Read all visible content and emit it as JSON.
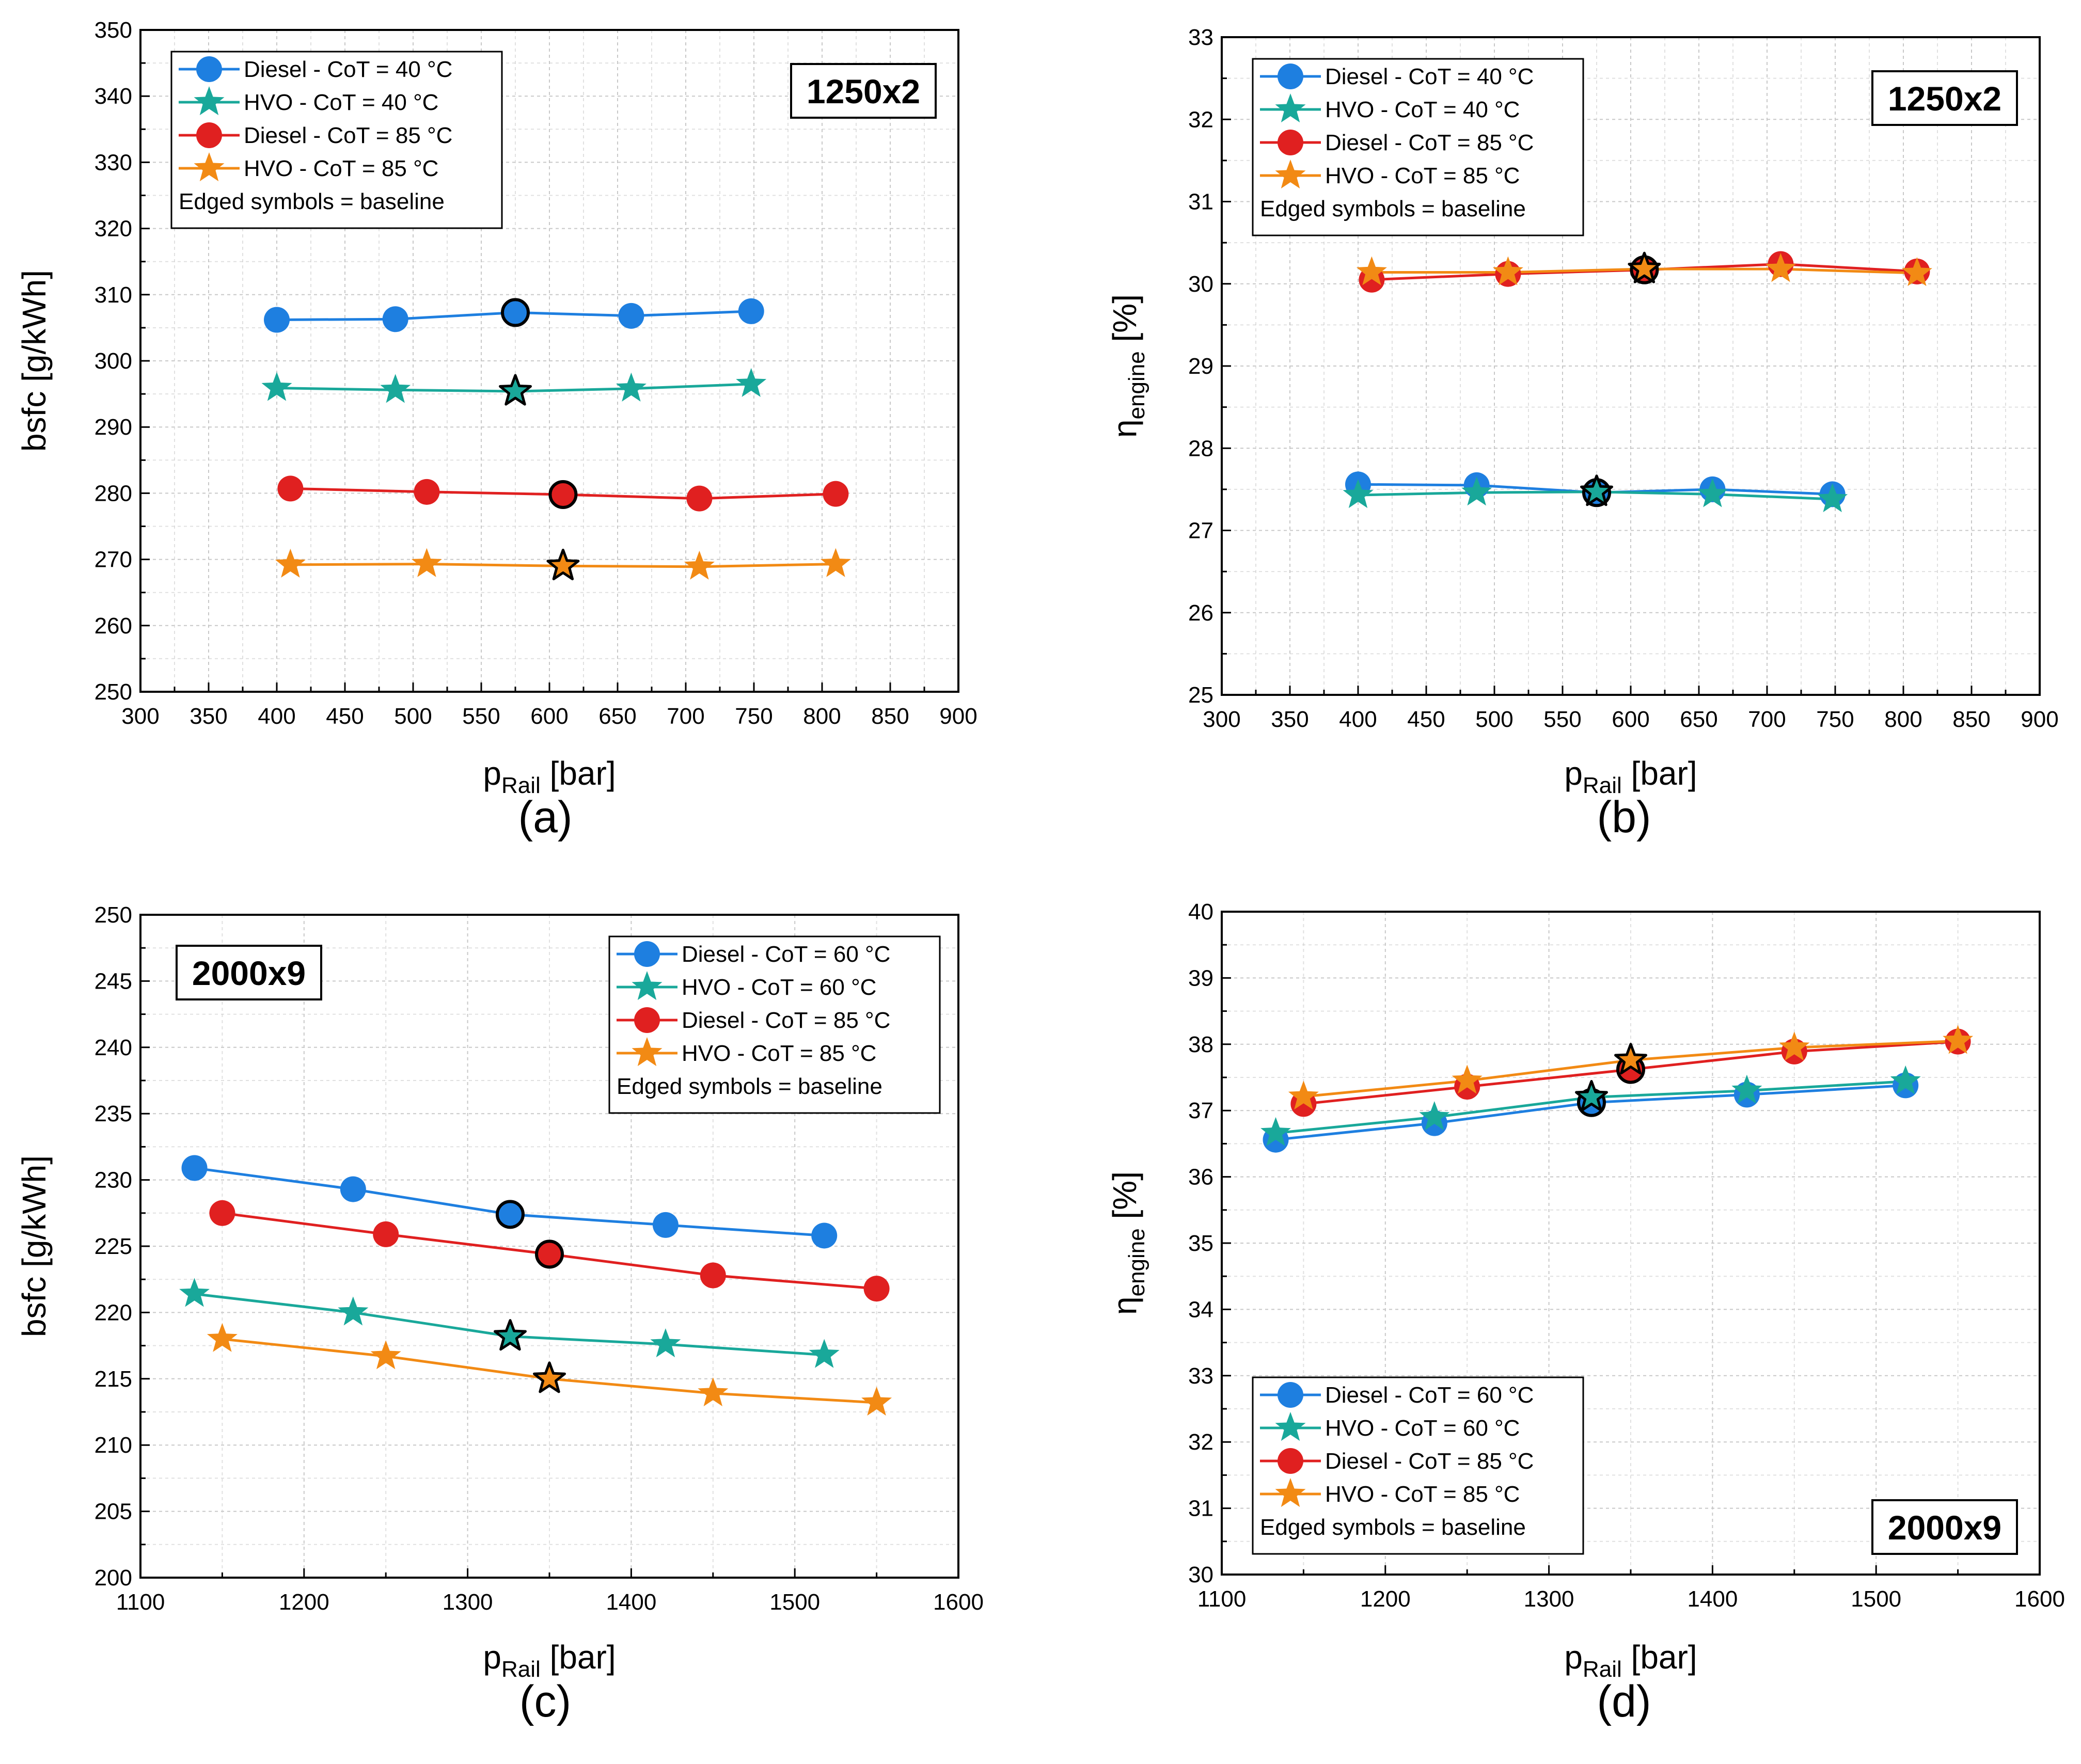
{
  "figure": {
    "colors": {
      "diesel_40": "#1e7fe0",
      "hvo_40": "#19a89a",
      "diesel_85": "#e02020",
      "hvo_85": "#f28a14",
      "baseline_edge": "#000000"
    }
  },
  "chart_data": [
    {
      "id": "a",
      "type": "line",
      "panel_label": "(a)",
      "box_label": "1250x2",
      "box_position": "top-right",
      "legend_position": "top-left",
      "xlabel_main": "p",
      "xlabel_sub": "Rail",
      "xlabel_unit": " [bar]",
      "ylabel_main": "bsfc [g/kWh]",
      "ylabel_sub": "",
      "ylabel_unit": "",
      "xlim": [
        300,
        900
      ],
      "xticks": [
        300,
        350,
        400,
        450,
        500,
        550,
        600,
        650,
        700,
        750,
        800,
        850,
        900
      ],
      "ylim": [
        250,
        350
      ],
      "yticks": [
        250,
        260,
        270,
        280,
        290,
        300,
        310,
        320,
        330,
        340,
        350
      ],
      "legend_note": "Edged symbols = baseline",
      "series": [
        {
          "name": "Diesel - CoT = 40 °C",
          "marker": "circle",
          "color": "#1e7fe0",
          "x": [
            400,
            487,
            575,
            660,
            748
          ],
          "y": [
            306.2,
            306.3,
            307.3,
            306.8,
            307.5
          ],
          "baseline_index": 2
        },
        {
          "name": "HVO - CoT = 40 °C",
          "marker": "star",
          "color": "#19a89a",
          "x": [
            400,
            487,
            575,
            660,
            748
          ],
          "y": [
            295.9,
            295.6,
            295.4,
            295.8,
            296.5
          ],
          "baseline_index": 2
        },
        {
          "name": "Diesel - CoT = 85 °C",
          "marker": "circle",
          "color": "#e02020",
          "x": [
            410,
            510,
            610,
            710,
            810
          ],
          "y": [
            280.7,
            280.2,
            279.8,
            279.2,
            279.9
          ],
          "baseline_index": 2
        },
        {
          "name": "HVO - CoT = 85 °C",
          "marker": "star",
          "color": "#f28a14",
          "x": [
            410,
            510,
            610,
            710,
            810
          ],
          "y": [
            269.2,
            269.3,
            269.0,
            268.9,
            269.3
          ],
          "baseline_index": 2
        }
      ]
    },
    {
      "id": "b",
      "type": "line",
      "panel_label": "(b)",
      "box_label": "1250x2",
      "box_position": "top-right",
      "legend_position": "top-left",
      "xlabel_main": "p",
      "xlabel_sub": "Rail",
      "xlabel_unit": " [bar]",
      "ylabel_main": "η",
      "ylabel_sub": "engine",
      "ylabel_unit": " [%]",
      "xlim": [
        300,
        900
      ],
      "xticks": [
        300,
        350,
        400,
        450,
        500,
        550,
        600,
        650,
        700,
        750,
        800,
        850,
        900
      ],
      "ylim": [
        25,
        33
      ],
      "yticks": [
        25,
        26,
        27,
        28,
        29,
        30,
        31,
        32,
        33
      ],
      "legend_note": "Edged symbols = baseline",
      "series": [
        {
          "name": "Diesel - CoT = 40 °C",
          "marker": "circle",
          "color": "#1e7fe0",
          "x": [
            400,
            487,
            575,
            660,
            748
          ],
          "y": [
            27.56,
            27.55,
            27.46,
            27.5,
            27.44
          ],
          "baseline_index": 2
        },
        {
          "name": "HVO - CoT = 40 °C",
          "marker": "star",
          "color": "#19a89a",
          "x": [
            400,
            487,
            575,
            660,
            748
          ],
          "y": [
            27.43,
            27.46,
            27.47,
            27.44,
            27.38
          ],
          "baseline_index": 2
        },
        {
          "name": "Diesel - CoT = 85 °C",
          "marker": "circle",
          "color": "#e02020",
          "x": [
            410,
            510,
            610,
            710,
            810
          ],
          "y": [
            30.05,
            30.12,
            30.17,
            30.24,
            30.15
          ],
          "baseline_index": 2
        },
        {
          "name": "HVO - CoT = 85 °C",
          "marker": "star",
          "color": "#f28a14",
          "x": [
            410,
            510,
            610,
            710,
            810
          ],
          "y": [
            30.14,
            30.14,
            30.18,
            30.18,
            30.13
          ],
          "baseline_index": 2
        }
      ]
    },
    {
      "id": "c",
      "type": "line",
      "panel_label": "(c)",
      "box_label": "2000x9",
      "box_position": "top-left",
      "legend_position": "top-right",
      "xlabel_main": "p",
      "xlabel_sub": "Rail",
      "xlabel_unit": " [bar]",
      "ylabel_main": "bsfc [g/kWh]",
      "ylabel_sub": "",
      "ylabel_unit": "",
      "xlim": [
        1100,
        1600
      ],
      "xticks": [
        1100,
        1200,
        1300,
        1400,
        1500,
        1600
      ],
      "ylim": [
        200,
        250
      ],
      "yticks": [
        200,
        205,
        210,
        215,
        220,
        225,
        230,
        235,
        240,
        245,
        250
      ],
      "legend_note": "Edged symbols = baseline",
      "series": [
        {
          "name": "Diesel - CoT = 60 °C",
          "marker": "circle",
          "color": "#1e7fe0",
          "x": [
            1133,
            1230,
            1326,
            1421,
            1518
          ],
          "y": [
            230.9,
            229.3,
            227.4,
            226.6,
            225.8
          ],
          "baseline_index": 2
        },
        {
          "name": "HVO - CoT = 60 °C",
          "marker": "star",
          "color": "#19a89a",
          "x": [
            1133,
            1230,
            1326,
            1421,
            1518
          ],
          "y": [
            221.4,
            220.0,
            218.2,
            217.6,
            216.8
          ],
          "baseline_index": 2
        },
        {
          "name": "Diesel - CoT = 85 °C",
          "marker": "circle",
          "color": "#e02020",
          "x": [
            1150,
            1250,
            1350,
            1450,
            1550
          ],
          "y": [
            227.5,
            225.9,
            224.4,
            222.8,
            221.8
          ],
          "baseline_index": 2
        },
        {
          "name": "HVO - CoT = 85 °C",
          "marker": "star",
          "color": "#f28a14",
          "x": [
            1150,
            1250,
            1350,
            1450,
            1550
          ],
          "y": [
            218.0,
            216.7,
            215.0,
            213.9,
            213.2
          ],
          "baseline_index": 2
        }
      ]
    },
    {
      "id": "d",
      "type": "line",
      "panel_label": "(d)",
      "box_label": "2000x9",
      "box_position": "bottom-right",
      "legend_position": "bottom-left",
      "xlabel_main": "p",
      "xlabel_sub": "Rail",
      "xlabel_unit": " [bar]",
      "ylabel_main": "η",
      "ylabel_sub": "engine",
      "ylabel_unit": " [%]",
      "xlim": [
        1100,
        1600
      ],
      "xticks": [
        1100,
        1200,
        1300,
        1400,
        1500,
        1600
      ],
      "ylim": [
        30,
        40
      ],
      "yticks": [
        30,
        31,
        32,
        33,
        34,
        35,
        36,
        37,
        38,
        39,
        40
      ],
      "legend_note": "Edged symbols = baseline",
      "series": [
        {
          "name": "Diesel - CoT = 60 °C",
          "marker": "circle",
          "color": "#1e7fe0",
          "x": [
            1133,
            1230,
            1326,
            1421,
            1518
          ],
          "y": [
            36.56,
            36.81,
            37.12,
            37.24,
            37.38
          ],
          "baseline_index": 2
        },
        {
          "name": "HVO - CoT = 60 °C",
          "marker": "star",
          "color": "#19a89a",
          "x": [
            1133,
            1230,
            1326,
            1421,
            1518
          ],
          "y": [
            36.66,
            36.9,
            37.2,
            37.3,
            37.44
          ],
          "baseline_index": 2
        },
        {
          "name": "Diesel - CoT = 85 °C",
          "marker": "circle",
          "color": "#e02020",
          "x": [
            1150,
            1250,
            1350,
            1450,
            1550
          ],
          "y": [
            37.1,
            37.36,
            37.62,
            37.89,
            38.04
          ],
          "baseline_index": 2
        },
        {
          "name": "HVO - CoT = 85 °C",
          "marker": "star",
          "color": "#f28a14",
          "x": [
            1150,
            1250,
            1350,
            1450,
            1550
          ],
          "y": [
            37.21,
            37.45,
            37.76,
            37.95,
            38.05
          ],
          "baseline_index": 2
        }
      ]
    }
  ]
}
